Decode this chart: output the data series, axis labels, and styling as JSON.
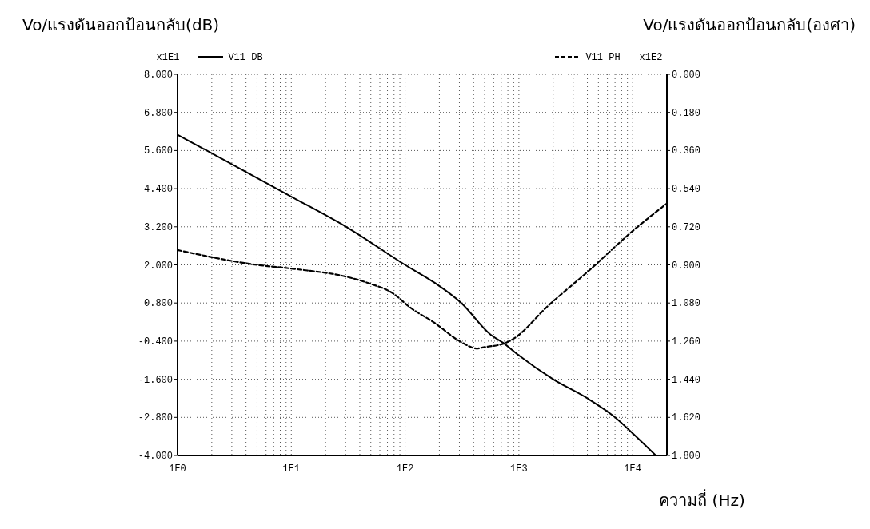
{
  "chart_data": {
    "type": "line",
    "ylabel": "Vo/แรงดันออกป้อนกลับ(dB)",
    "y2label": "Vo/แรงดันออกป้อนกลับ(องศา)",
    "xlabel": "ความถี่ (Hz)",
    "annotations": [
      "x1E1",
      "x1E2"
    ],
    "log": "x",
    "grid": true,
    "legend": "top",
    "xlim": [
      1,
      20000
    ],
    "xticks": [
      {
        "value": 1,
        "label": "1E0"
      },
      {
        "value": 2,
        "label": null
      },
      {
        "value": 3,
        "label": null
      },
      {
        "value": 4,
        "label": null
      },
      {
        "value": 5,
        "label": null
      },
      {
        "value": 6,
        "label": null
      },
      {
        "value": 7,
        "label": null
      },
      {
        "value": 8,
        "label": null
      },
      {
        "value": 9,
        "label": null
      },
      {
        "value": 10,
        "label": "1E1"
      },
      {
        "value": 20,
        "label": null
      },
      {
        "value": 30,
        "label": null
      },
      {
        "value": 40,
        "label": null
      },
      {
        "value": 50,
        "label": null
      },
      {
        "value": 60,
        "label": null
      },
      {
        "value": 70,
        "label": null
      },
      {
        "value": 80,
        "label": null
      },
      {
        "value": 90,
        "label": null
      },
      {
        "value": 100,
        "label": "1E2"
      },
      {
        "value": 200,
        "label": null
      },
      {
        "value": 300,
        "label": null
      },
      {
        "value": 400,
        "label": null
      },
      {
        "value": 500,
        "label": null
      },
      {
        "value": 600,
        "label": null
      },
      {
        "value": 700,
        "label": null
      },
      {
        "value": 800,
        "label": null
      },
      {
        "value": 900,
        "label": null
      },
      {
        "value": 1000,
        "label": "1E3"
      },
      {
        "value": 2000,
        "label": null
      },
      {
        "value": 3000,
        "label": null
      },
      {
        "value": 4000,
        "label": null
      },
      {
        "value": 5000,
        "label": null
      },
      {
        "value": 6000,
        "label": null
      },
      {
        "value": 7000,
        "label": null
      },
      {
        "value": 8000,
        "label": null
      },
      {
        "value": 9000,
        "label": null
      },
      {
        "value": 10000,
        "label": "1E4"
      }
    ],
    "ylim": [
      -4,
      8
    ],
    "yticks": [
      {
        "value": 8,
        "label": "8.000"
      },
      {
        "value": 6.8,
        "label": "6.800"
      },
      {
        "value": 5.6,
        "label": "5.600"
      },
      {
        "value": 4.4,
        "label": "4.400"
      },
      {
        "value": 3.2,
        "label": "3.200"
      },
      {
        "value": 2,
        "label": "2.000"
      },
      {
        "value": 0.8,
        "label": "0.800"
      },
      {
        "value": -0.4,
        "label": "-0.400"
      },
      {
        "value": -1.6,
        "label": "-1.600"
      },
      {
        "value": -2.8,
        "label": "-2.800"
      },
      {
        "value": -4,
        "label": "-4.000"
      }
    ],
    "y2lim": [
      1.8,
      0
    ],
    "y2ticks": [
      {
        "value": 0,
        "label": "0.000"
      },
      {
        "value": 0.18,
        "label": "0.180"
      },
      {
        "value": 0.36,
        "label": "0.360"
      },
      {
        "value": 0.54,
        "label": "0.540"
      },
      {
        "value": 0.72,
        "label": "0.720"
      },
      {
        "value": 0.9,
        "label": "0.900"
      },
      {
        "value": 1.08,
        "label": "1.080"
      },
      {
        "value": 1.26,
        "label": "1.260"
      },
      {
        "value": 1.44,
        "label": "1.440"
      },
      {
        "value": 1.62,
        "label": "1.620"
      },
      {
        "value": 1.8,
        "label": "1.800"
      }
    ],
    "series": [
      {
        "name": "V11 DB",
        "color": "#000000",
        "line_style": "solid",
        "x": [
          1,
          10,
          32,
          100,
          183,
          312,
          566,
          724,
          1000,
          2000,
          4000,
          7000,
          10000,
          16000
        ],
        "values": [
          6.1,
          4.15,
          3.15,
          2.0,
          1.43,
          0.8,
          -0.2,
          -0.45,
          -0.85,
          -1.6,
          -2.2,
          -2.8,
          -3.3,
          -4.0
        ]
      },
      {
        "name": "V11 PH",
        "color": "#000000",
        "line_style": "dashed",
        "axis": "y2",
        "x": [
          1,
          5,
          11,
          30,
          47,
          81,
          107,
          183,
          312,
          430,
          480,
          750,
          920,
          1750,
          4170,
          10000,
          20000
        ],
        "values": [
          0.83,
          0.9,
          0.92,
          0.955,
          0.985,
          1.04,
          1.095,
          1.175,
          1.265,
          1.295,
          1.29,
          1.27,
          1.245,
          1.1,
          0.925,
          0.74,
          0.61
        ]
      }
    ]
  }
}
